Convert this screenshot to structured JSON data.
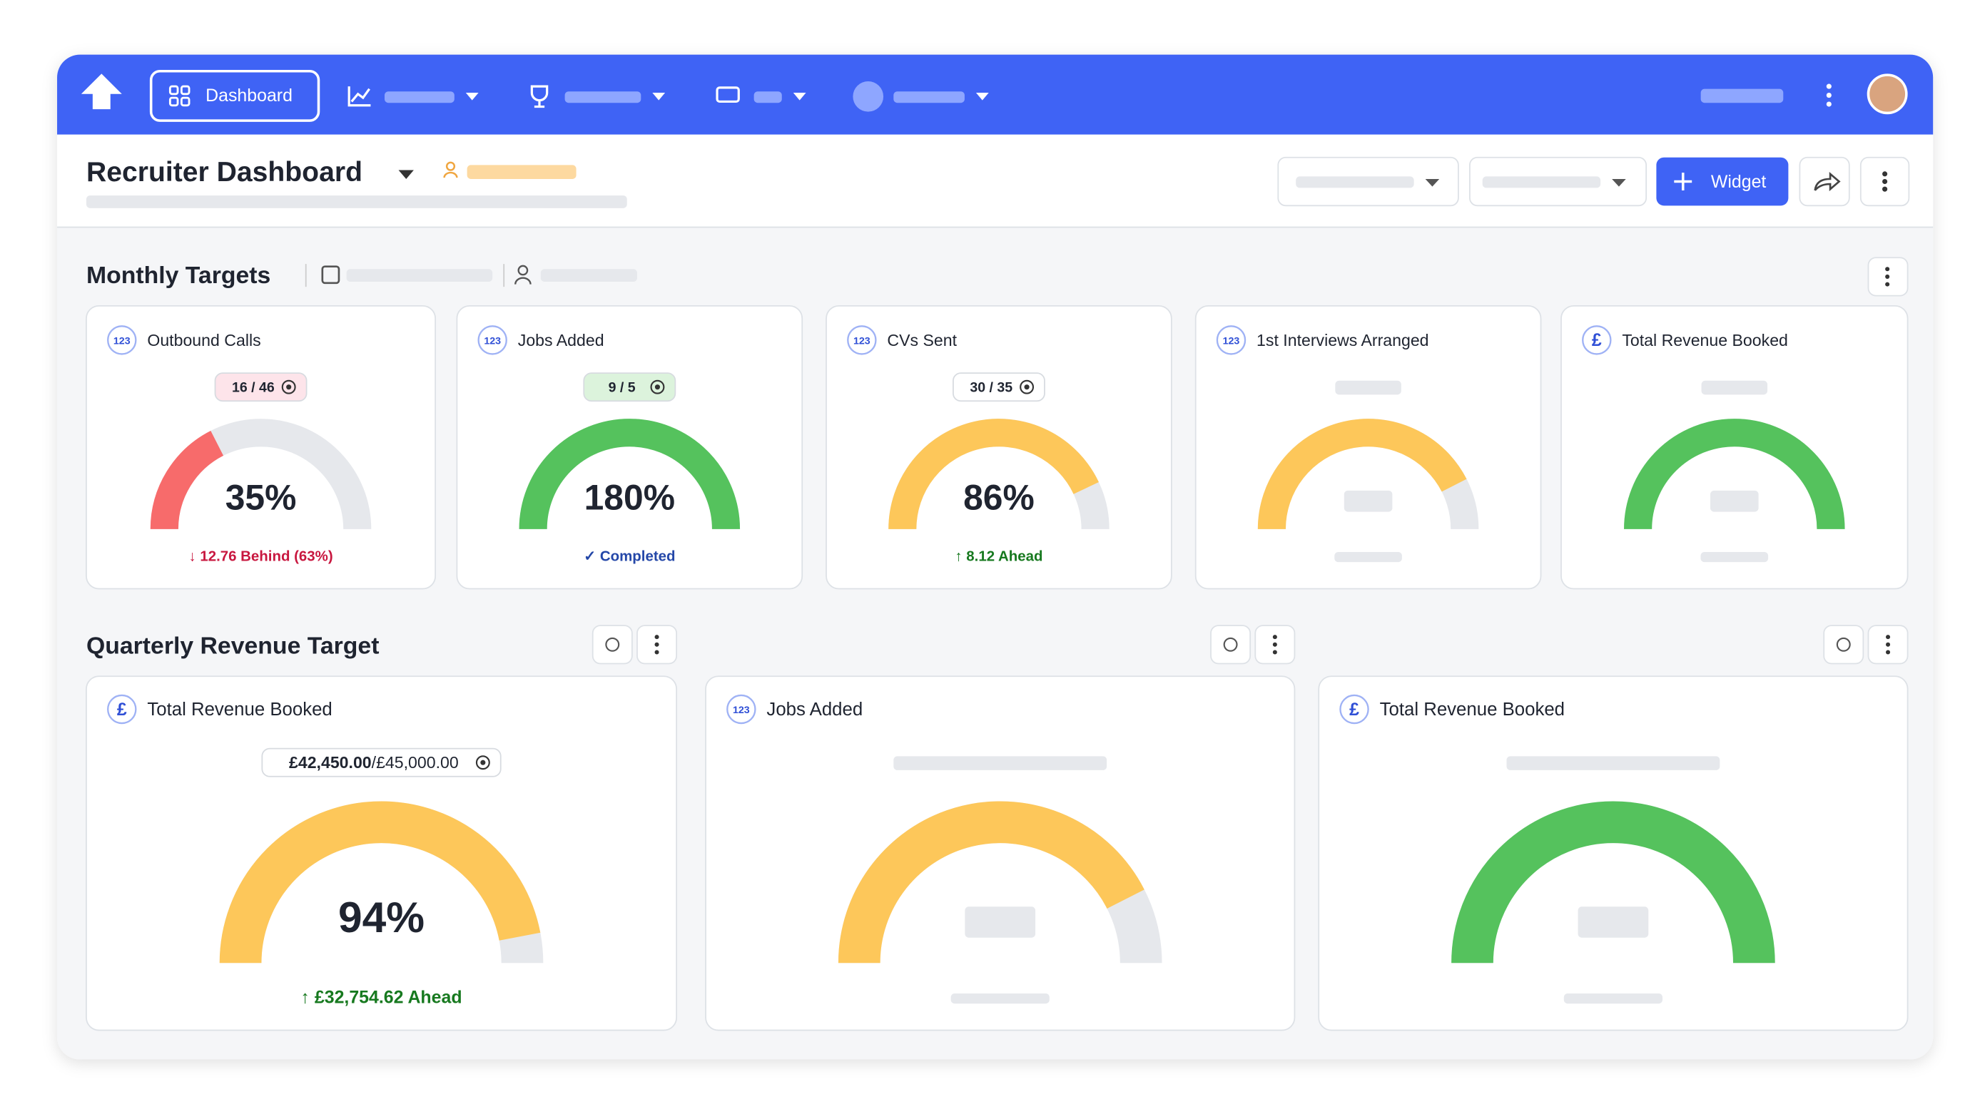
{
  "nav": {
    "dashboard": "Dashboard"
  },
  "header": {
    "title": "Recruiter Dashboard",
    "widget_button": "Widget"
  },
  "monthly": {
    "title": "Monthly Targets",
    "cards": [
      {
        "icon": "123",
        "title": "Outbound Calls",
        "pill": "16 / 46",
        "pill_color": "#fde4ea",
        "gauge": {
          "value": 35,
          "label": "35%",
          "range": [
            0,
            100
          ],
          "color": "#f76b6b"
        },
        "status": "↓ 12.76 Behind (63%)",
        "status_color": "#c8173f"
      },
      {
        "icon": "123",
        "title": "Jobs Added",
        "pill": "9 / 5",
        "pill_color": "#dcf3dc",
        "gauge": {
          "value": 180,
          "label": "180%",
          "range": [
            0,
            100
          ],
          "color": "#55c25d"
        },
        "status": "✓ Completed",
        "status_color": "#2447a8"
      },
      {
        "icon": "123",
        "title": "CVs Sent",
        "pill": "30 / 35",
        "pill_color": "#ffffff",
        "gauge": {
          "value": 86,
          "label": "86%",
          "range": [
            0,
            100
          ],
          "color": "#fdc75a"
        },
        "status": "↑ 8.12 Ahead",
        "status_color": "#17791f"
      },
      {
        "icon": "123",
        "title": "1st Interviews Arranged",
        "skeleton_color": "#fdc75a"
      },
      {
        "icon": "£",
        "title": "Total Revenue Booked",
        "skeleton_color": "#55c25d"
      }
    ]
  },
  "quarterly": {
    "title": "Quarterly Revenue Target",
    "cards": [
      {
        "icon": "£",
        "title": "Total Revenue Booked",
        "pill": "£42,450.00",
        "pill_target": "/£45,000.00",
        "pill_color": "#ffffff",
        "gauge": {
          "value": 94,
          "label": "94%",
          "range": [
            0,
            100
          ],
          "color": "#fdc75a"
        },
        "status": "↑ £32,754.62 Ahead",
        "status_color": "#17791f"
      },
      {
        "icon": "123",
        "title": "Jobs Added",
        "skeleton_color": "#fdc75a"
      },
      {
        "icon": "£",
        "title": "Total Revenue Booked",
        "skeleton_color": "#55c25d"
      }
    ]
  }
}
